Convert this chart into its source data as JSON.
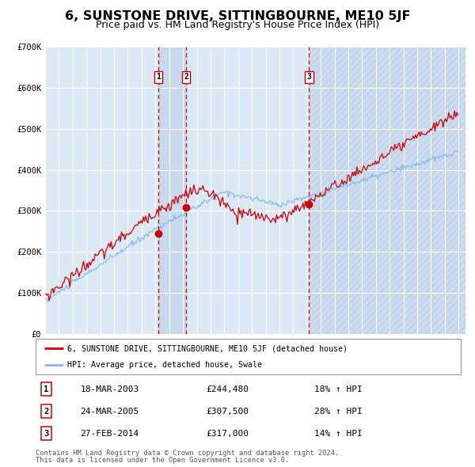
{
  "title": "6, SUNSTONE DRIVE, SITTINGBOURNE, ME10 5JF",
  "subtitle": "Price paid vs. HM Land Registry's House Price Index (HPI)",
  "background_color": "#ffffff",
  "plot_bg_color": "#dde8f5",
  "grid_color": "#ffffff",
  "hpi_line_color": "#88bbe8",
  "price_line_color": "#cc0000",
  "marker_color": "#cc0000",
  "dashed_line_color": "#cc0000",
  "shade_between_color": "#c8d8ee",
  "shade_after_color": "#c8d8ee",
  "transactions": [
    {
      "num": 1,
      "date": "18-MAR-2003",
      "price": 244480,
      "pct": "18%",
      "year": 2003.21
    },
    {
      "num": 2,
      "date": "24-MAR-2005",
      "price": 307500,
      "pct": "28%",
      "year": 2005.23
    },
    {
      "num": 3,
      "date": "27-FEB-2014",
      "price": 317000,
      "pct": "14%",
      "year": 2014.15
    }
  ],
  "ylim": [
    0,
    700000
  ],
  "yticks": [
    0,
    100000,
    200000,
    300000,
    400000,
    500000,
    600000,
    700000
  ],
  "ytick_labels": [
    "£0",
    "£100K",
    "£200K",
    "£300K",
    "£400K",
    "£500K",
    "£600K",
    "£700K"
  ],
  "xlim_start": 1995.0,
  "xlim_end": 2025.5,
  "legend_label_price": "6, SUNSTONE DRIVE, SITTINGBOURNE, ME10 5JF (detached house)",
  "legend_label_hpi": "HPI: Average price, detached house, Swale",
  "footer1": "Contains HM Land Registry data © Crown copyright and database right 2024.",
  "footer2": "This data is licensed under the Open Government Licence v3.0."
}
